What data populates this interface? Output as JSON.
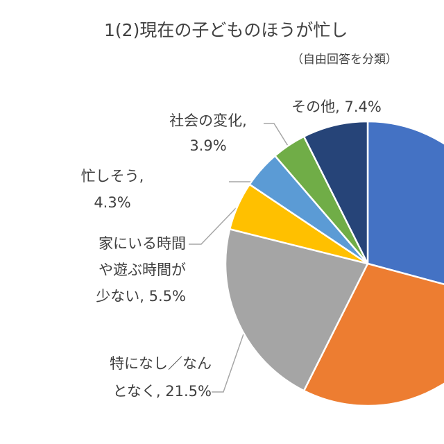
{
  "chart_data": {
    "type": "pie",
    "title": "1(2)現在の子どものほうが忙し",
    "subtitle": "（自由回答を分類）",
    "values": [
      29.2,
      28.2,
      21.5,
      5.5,
      4.3,
      3.9,
      7.4
    ],
    "value_labels": [
      null,
      null,
      "特になし／なん\nとなく, 21.5%",
      "家にいる時間\nや遊ぶ時間が\n少ない, 5.5%",
      "忙しそう,\n4.3%",
      "社会の変化,\n3.9%",
      "その他, 7.4%"
    ],
    "colors": [
      "#4472c4",
      "#ed7d31",
      "#a5a5a5",
      "#ffc000",
      "#5b9bd5",
      "#70ad47",
      "#264478"
    ]
  }
}
